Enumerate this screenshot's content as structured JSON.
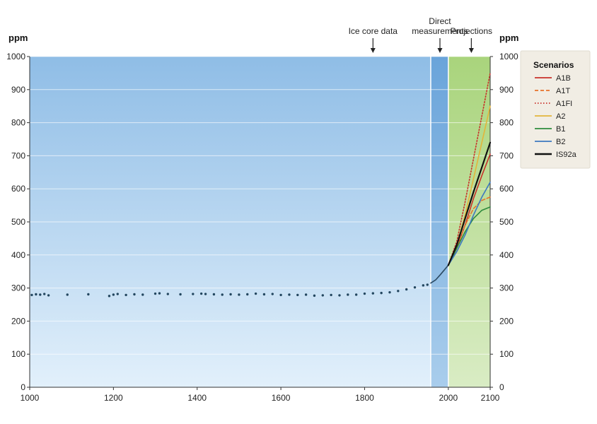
{
  "chart_data": {
    "type": "line",
    "title": "",
    "unit_left": "ppm",
    "unit_right": "ppm",
    "xlim": [
      1000,
      2100
    ],
    "ylim": [
      0,
      1000
    ],
    "x_ticks": [
      1000,
      1200,
      1400,
      1600,
      1800,
      2000,
      2100
    ],
    "y_ticks": [
      0,
      100,
      200,
      300,
      400,
      500,
      600,
      700,
      800,
      900,
      1000
    ],
    "grid": "horizontal",
    "periods": [
      {
        "name": "ice-core",
        "from": 1000,
        "to": 1958,
        "color": "#9cc6ea"
      },
      {
        "name": "direct",
        "from": 1958,
        "to": 2000,
        "color": "#6ea8dc"
      },
      {
        "name": "projections",
        "from": 2000,
        "to": 2100,
        "color": "#b5d98c"
      }
    ],
    "annotations": [
      {
        "lines": [
          "Ice core data"
        ],
        "x": 1820
      },
      {
        "lines": [
          "Direct",
          "measurements"
        ],
        "x": 1980
      },
      {
        "lines": [
          "Projections"
        ],
        "x": 2055
      }
    ],
    "ice_core_points": [
      [
        1005,
        279
      ],
      [
        1015,
        281
      ],
      [
        1025,
        280
      ],
      [
        1035,
        282
      ],
      [
        1045,
        278
      ],
      [
        1090,
        280
      ],
      [
        1140,
        281
      ],
      [
        1190,
        276
      ],
      [
        1200,
        280
      ],
      [
        1210,
        282
      ],
      [
        1230,
        279
      ],
      [
        1250,
        281
      ],
      [
        1270,
        280
      ],
      [
        1300,
        283
      ],
      [
        1310,
        284
      ],
      [
        1330,
        282
      ],
      [
        1360,
        281
      ],
      [
        1390,
        282
      ],
      [
        1410,
        283
      ],
      [
        1420,
        282
      ],
      [
        1440,
        281
      ],
      [
        1460,
        280
      ],
      [
        1480,
        281
      ],
      [
        1500,
        280
      ],
      [
        1520,
        281
      ],
      [
        1540,
        283
      ],
      [
        1560,
        281
      ],
      [
        1580,
        282
      ],
      [
        1600,
        279
      ],
      [
        1620,
        280
      ],
      [
        1640,
        279
      ],
      [
        1660,
        280
      ],
      [
        1680,
        277
      ],
      [
        1700,
        278
      ],
      [
        1720,
        279
      ],
      [
        1740,
        278
      ],
      [
        1760,
        280
      ],
      [
        1780,
        280
      ],
      [
        1800,
        283
      ],
      [
        1820,
        284
      ],
      [
        1840,
        285
      ],
      [
        1860,
        287
      ],
      [
        1880,
        291
      ],
      [
        1900,
        296
      ],
      [
        1920,
        302
      ],
      [
        1940,
        308
      ],
      [
        1950,
        310
      ]
    ],
    "series": [
      {
        "name": "Direct",
        "color": "#2b4a63",
        "style": "solid",
        "x": [
          1958,
          1970,
          1980,
          1990,
          2000
        ],
        "y": [
          315,
          325,
          339,
          354,
          369
        ]
      },
      {
        "name": "A1B",
        "color": "#c8312a",
        "style": "solid",
        "x": [
          2000,
          2020,
          2040,
          2060,
          2080,
          2100
        ],
        "y": [
          369,
          420,
          490,
          570,
          640,
          705
        ]
      },
      {
        "name": "A1T",
        "color": "#e6722a",
        "style": "dashed",
        "x": [
          2000,
          2020,
          2040,
          2060,
          2080,
          2100
        ],
        "y": [
          369,
          420,
          490,
          540,
          565,
          575
        ]
      },
      {
        "name": "A1FI",
        "color": "#c8312a",
        "style": "dotted",
        "x": [
          2000,
          2020,
          2040,
          2060,
          2080,
          2100
        ],
        "y": [
          369,
          440,
          560,
          690,
          820,
          950
        ]
      },
      {
        "name": "A2",
        "color": "#e2b53b",
        "style": "solid",
        "x": [
          2000,
          2020,
          2040,
          2060,
          2080,
          2100
        ],
        "y": [
          369,
          430,
          520,
          630,
          740,
          850
        ]
      },
      {
        "name": "B1",
        "color": "#2e8b3e",
        "style": "solid",
        "x": [
          2000,
          2020,
          2040,
          2060,
          2080,
          2100
        ],
        "y": [
          369,
          420,
          470,
          510,
          535,
          545
        ]
      },
      {
        "name": "B2",
        "color": "#3c78c0",
        "style": "solid",
        "x": [
          2000,
          2020,
          2040,
          2060,
          2080,
          2100
        ],
        "y": [
          369,
          410,
          460,
          520,
          575,
          620
        ]
      },
      {
        "name": "IS92a",
        "color": "#111111",
        "style": "solid",
        "x": [
          2000,
          2020,
          2040,
          2060,
          2080,
          2100
        ],
        "y": [
          369,
          430,
          510,
          590,
          665,
          740
        ]
      }
    ],
    "legend": {
      "title": "Scenarios",
      "placement": "top-right",
      "entries": [
        {
          "label": "A1B",
          "color": "#c8312a",
          "style": "solid"
        },
        {
          "label": "A1T",
          "color": "#e6722a",
          "style": "dashed"
        },
        {
          "label": "A1FI",
          "color": "#c8312a",
          "style": "dotted"
        },
        {
          "label": "A2",
          "color": "#e2b53b",
          "style": "solid"
        },
        {
          "label": "B1",
          "color": "#2e8b3e",
          "style": "solid"
        },
        {
          "label": "B2",
          "color": "#3c78c0",
          "style": "solid"
        },
        {
          "label": "IS92a",
          "color": "#111111",
          "style": "solid"
        }
      ]
    }
  }
}
